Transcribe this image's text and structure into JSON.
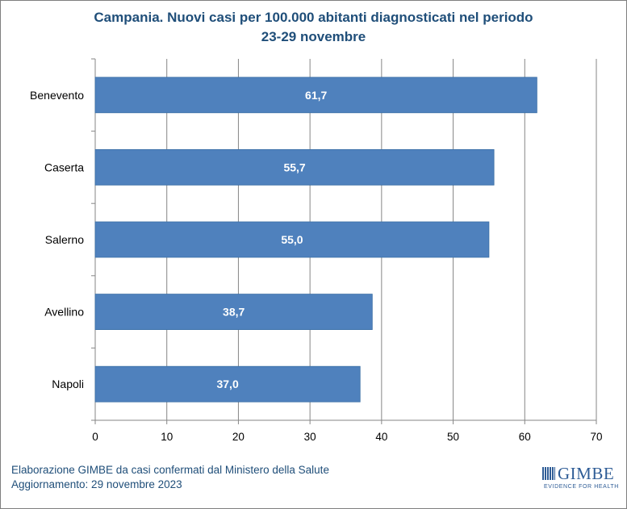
{
  "chart_data": {
    "type": "bar",
    "orientation": "horizontal",
    "title_line1": "Campania. Nuovi casi per 100.000 abitanti diagnosticati nel periodo",
    "title_line2": "23-29 novembre",
    "categories": [
      "Benevento",
      "Caserta",
      "Salerno",
      "Avellino",
      "Napoli"
    ],
    "values": [
      61.7,
      55.7,
      55.0,
      38.7,
      37.0
    ],
    "value_labels": [
      "61,7",
      "55,7",
      "55,0",
      "38,7",
      "37,0"
    ],
    "xlim": [
      0,
      70
    ],
    "xticks": [
      0,
      10,
      20,
      30,
      40,
      50,
      60,
      70
    ],
    "grid": true,
    "bar_color": "#4f81bd",
    "label_color": "#ffffff"
  },
  "footer": {
    "line1": "Elaborazione GIMBE da casi confermati dal Ministero della Salute",
    "line2": "Aggiornamento: 29 novembre 2023"
  },
  "logo": {
    "name": "GIMBE",
    "tagline": "EVIDENCE FOR HEALTH"
  },
  "colors": {
    "title": "#1f4e79",
    "footer": "#1f4e79",
    "grid": "#868686"
  }
}
